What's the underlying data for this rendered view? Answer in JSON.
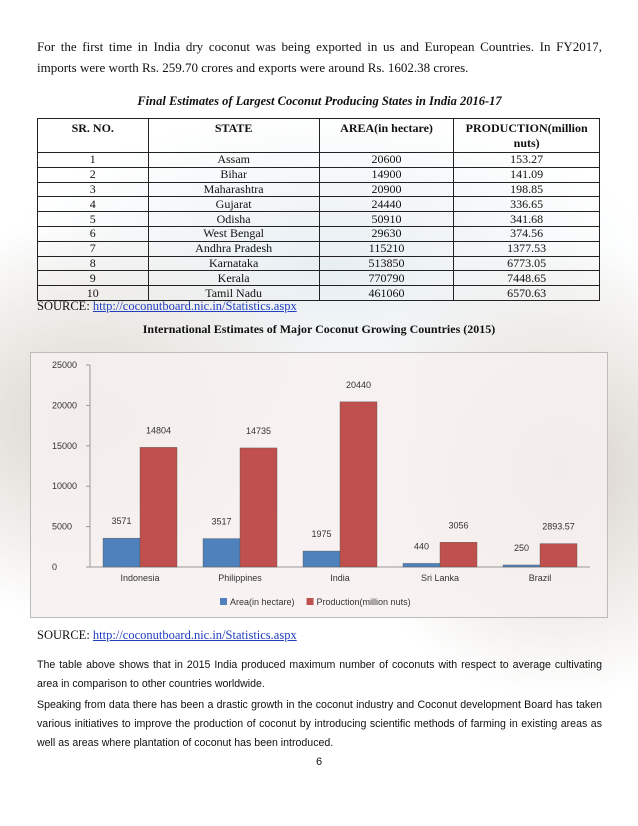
{
  "intro": "For the first time in India dry coconut was being exported in us and European Countries. In FY2017, imports were worth Rs. 259.70 crores and exports were around Rs. 1602.38 crores.",
  "table": {
    "caption": "Final Estimates of Largest Coconut Producing States in India 2016-17",
    "header": [
      "SR. NO.",
      "STATE",
      "AREA(in hectare)",
      "PRODUCTION(million nuts)"
    ],
    "rows": [
      [
        1,
        "Assam",
        20600,
        153.27
      ],
      [
        2,
        "Bihar",
        14900,
        141.09
      ],
      [
        3,
        "Maharashtra",
        20900,
        198.85
      ],
      [
        4,
        "Gujarat",
        24440,
        336.65
      ],
      [
        5,
        "Odisha",
        50910,
        341.68
      ],
      [
        6,
        "West Bengal",
        29630,
        374.56
      ],
      [
        7,
        "Andhra Pradesh",
        115210,
        1377.53
      ],
      [
        8,
        "Karnataka",
        513850,
        6773.05
      ],
      [
        9,
        "Kerala",
        770790,
        7448.65
      ],
      [
        10,
        "Tamil Nadu",
        461060,
        6570.63
      ]
    ]
  },
  "source1": {
    "label": "SOURCE:",
    "url": "http://coconutboard.nic.in/Statistics.aspx"
  },
  "chart_data": {
    "type": "bar",
    "title": "International Estimates of Major Coconut Growing Countries (2015)",
    "categories": [
      "Indonesia",
      "Philippines",
      "India",
      "Sri Lanka",
      "Brazil"
    ],
    "series": [
      {
        "name": "Area(in hectare)",
        "color": "#4f81bd",
        "values": [
          3571,
          3517,
          1975,
          440,
          250
        ]
      },
      {
        "name": "Production(million nuts)",
        "color": "#c0504d",
        "values": [
          14804,
          14735,
          20440,
          3056,
          2893.57
        ]
      }
    ],
    "ylim": [
      0,
      25000
    ],
    "yticks": [
      0,
      5000,
      10000,
      15000,
      20000,
      25000
    ],
    "legend": "bottom"
  },
  "source2": {
    "label": "SOURCE:",
    "url": "http://coconutboard.nic.in/Statistics.aspx"
  },
  "paragraphs": [
    "The table above shows that in 2015 India produced maximum number of coconuts with respect to average cultivating area in comparison to other countries worldwide.",
    "Speaking from data there has been a drastic growth in the coconut industry and Coconut development Board has taken various initiatives to improve the production of coconut by introducing scientific methods of farming in existing areas as well as areas where plantation of coconut has been introduced."
  ],
  "page_number": 6
}
